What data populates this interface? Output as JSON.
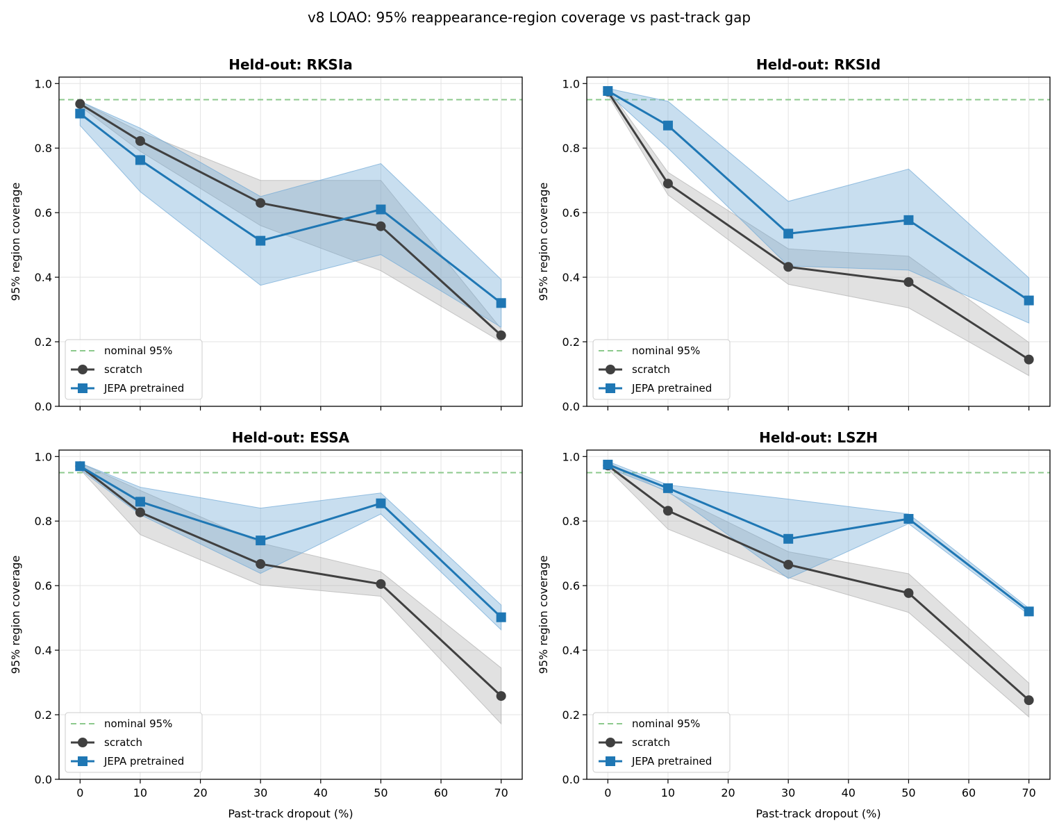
{
  "figure": {
    "title": "v8 LOAO: 95% reappearance-region coverage vs past-track gap"
  },
  "colors": {
    "scratch": "#404040",
    "scratch_band": "#b0b0b0",
    "jepa": "#1f77b4",
    "jepa_band": "#6fa8d6",
    "nominal": "#8cc98c",
    "grid": "#e3e3e3"
  },
  "legend_labels": [
    "nominal 95%",
    "scratch",
    "JEPA pretrained"
  ],
  "chart_data": [
    {
      "type": "line",
      "title": "Held-out: RKSIa",
      "xlabel": "",
      "ylabel": "95% region coverage",
      "x": [
        0,
        10,
        30,
        50,
        70
      ],
      "xticks": [
        0,
        10,
        20,
        30,
        40,
        50,
        60,
        70
      ],
      "show_xtick_labels": false,
      "yticks": [
        "0.0",
        "0.2",
        "0.4",
        "0.6",
        "0.8",
        "1.0"
      ],
      "xlim": [
        -3.5,
        73.5
      ],
      "ylim": [
        0,
        1.02
      ],
      "grid": true,
      "legend_position": "lower-left",
      "reference_line": {
        "name": "nominal 95%",
        "y": 0.95,
        "style": "dashed"
      },
      "series": [
        {
          "name": "scratch",
          "marker": "circle",
          "values": [
            0.937,
            0.822,
            0.63,
            0.558,
            0.22
          ],
          "lower": [
            0.93,
            0.79,
            0.56,
            0.42,
            0.2
          ],
          "upper": [
            0.945,
            0.85,
            0.7,
            0.7,
            0.24
          ]
        },
        {
          "name": "JEPA pretrained",
          "marker": "square",
          "values": [
            0.907,
            0.763,
            0.513,
            0.61,
            0.32
          ],
          "lower": [
            0.87,
            0.665,
            0.375,
            0.47,
            0.245
          ],
          "upper": [
            0.945,
            0.862,
            0.65,
            0.752,
            0.393
          ]
        }
      ]
    },
    {
      "type": "line",
      "title": "Held-out: RKSId",
      "xlabel": "",
      "ylabel": "95% region coverage",
      "x": [
        0,
        10,
        30,
        50,
        70
      ],
      "xticks": [
        0,
        10,
        20,
        30,
        40,
        50,
        60,
        70
      ],
      "show_xtick_labels": false,
      "yticks": [
        "0.0",
        "0.2",
        "0.4",
        "0.6",
        "0.8",
        "1.0"
      ],
      "xlim": [
        -3.5,
        73.5
      ],
      "ylim": [
        0,
        1.02
      ],
      "grid": true,
      "legend_position": "lower-left",
      "reference_line": {
        "name": "nominal 95%",
        "y": 0.95,
        "style": "dashed"
      },
      "series": [
        {
          "name": "scratch",
          "marker": "circle",
          "values": [
            0.975,
            0.69,
            0.432,
            0.385,
            0.145
          ],
          "lower": [
            0.965,
            0.655,
            0.378,
            0.305,
            0.095
          ],
          "upper": [
            0.985,
            0.725,
            0.488,
            0.465,
            0.198
          ]
        },
        {
          "name": "JEPA pretrained",
          "marker": "square",
          "values": [
            0.977,
            0.87,
            0.535,
            0.577,
            0.328
          ],
          "lower": [
            0.97,
            0.8,
            0.435,
            0.422,
            0.258
          ],
          "upper": [
            0.985,
            0.945,
            0.635,
            0.735,
            0.398
          ]
        }
      ]
    },
    {
      "type": "line",
      "title": "Held-out: ESSA",
      "xlabel": "Past-track dropout (%)",
      "ylabel": "95% region coverage",
      "x": [
        0,
        10,
        30,
        50,
        70
      ],
      "xticks": [
        0,
        10,
        20,
        30,
        40,
        50,
        60,
        70
      ],
      "show_xtick_labels": true,
      "yticks": [
        "0.0",
        "0.2",
        "0.4",
        "0.6",
        "0.8",
        "1.0"
      ],
      "xlim": [
        -3.5,
        73.5
      ],
      "ylim": [
        0,
        1.02
      ],
      "grid": true,
      "legend_position": "lower-left",
      "reference_line": {
        "name": "nominal 95%",
        "y": 0.95,
        "style": "dashed"
      },
      "series": [
        {
          "name": "scratch",
          "marker": "circle",
          "values": [
            0.97,
            0.827,
            0.667,
            0.605,
            0.258
          ],
          "lower": [
            0.96,
            0.758,
            0.602,
            0.567,
            0.172
          ],
          "upper": [
            0.98,
            0.895,
            0.732,
            0.643,
            0.345
          ]
        },
        {
          "name": "JEPA pretrained",
          "marker": "square",
          "values": [
            0.97,
            0.86,
            0.74,
            0.855,
            0.502
          ],
          "lower": [
            0.96,
            0.82,
            0.638,
            0.822,
            0.463
          ],
          "upper": [
            0.98,
            0.905,
            0.84,
            0.887,
            0.54
          ]
        }
      ]
    },
    {
      "type": "line",
      "title": "Held-out: LSZH",
      "xlabel": "Past-track dropout (%)",
      "ylabel": "95% region coverage",
      "x": [
        0,
        10,
        30,
        50,
        70
      ],
      "xticks": [
        0,
        10,
        20,
        30,
        40,
        50,
        60,
        70
      ],
      "show_xtick_labels": true,
      "yticks": [
        "0.0",
        "0.2",
        "0.4",
        "0.6",
        "0.8",
        "1.0"
      ],
      "xlim": [
        -3.5,
        73.5
      ],
      "ylim": [
        0,
        1.02
      ],
      "grid": true,
      "legend_position": "lower-left",
      "reference_line": {
        "name": "nominal 95%",
        "y": 0.95,
        "style": "dashed"
      },
      "series": [
        {
          "name": "scratch",
          "marker": "circle",
          "values": [
            0.972,
            0.832,
            0.665,
            0.577,
            0.245
          ],
          "lower": [
            0.962,
            0.775,
            0.625,
            0.517,
            0.193
          ],
          "upper": [
            0.982,
            0.888,
            0.705,
            0.637,
            0.298
          ]
        },
        {
          "name": "JEPA pretrained",
          "marker": "square",
          "values": [
            0.975,
            0.902,
            0.745,
            0.807,
            0.52
          ],
          "lower": [
            0.965,
            0.892,
            0.622,
            0.792,
            0.51
          ],
          "upper": [
            0.985,
            0.912,
            0.868,
            0.822,
            0.53
          ]
        }
      ]
    }
  ]
}
